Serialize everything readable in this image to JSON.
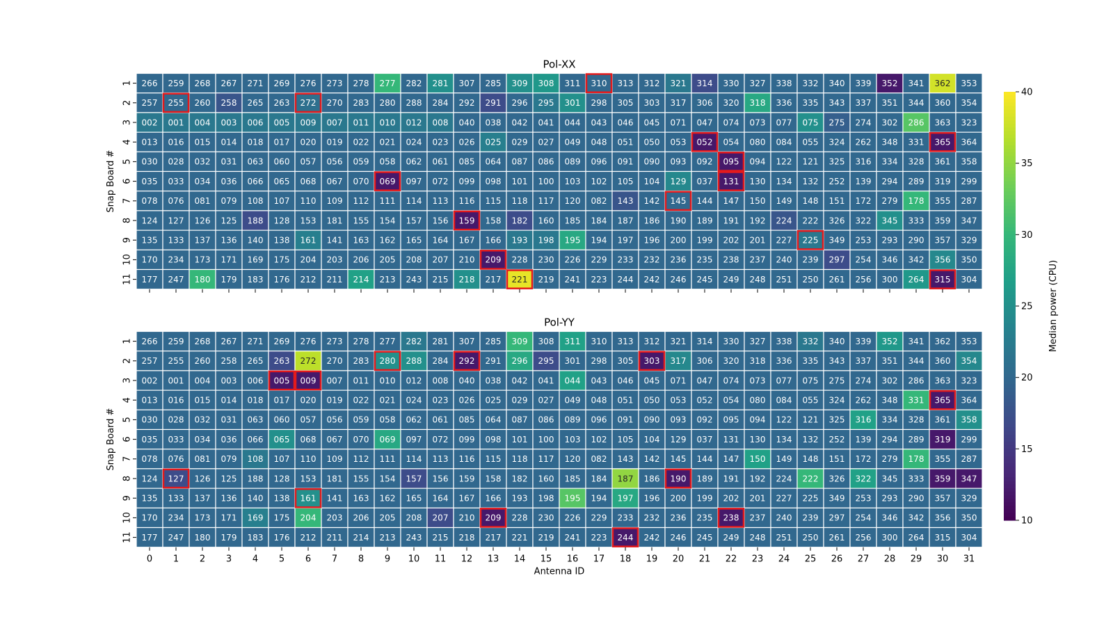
{
  "chart_data": {
    "type": "heatmap",
    "xlabel": "Antenna ID",
    "ylabel": "Snap Board #",
    "x_categories": [
      "0",
      "1",
      "2",
      "3",
      "4",
      "5",
      "6",
      "7",
      "8",
      "9",
      "10",
      "11",
      "12",
      "13",
      "14",
      "15",
      "16",
      "17",
      "18",
      "19",
      "20",
      "21",
      "22",
      "23",
      "24",
      "25",
      "26",
      "27",
      "28",
      "29",
      "30",
      "31"
    ],
    "y_categories": [
      "1",
      "2",
      "3",
      "4",
      "5",
      "6",
      "7",
      "8",
      "9",
      "10",
      "11"
    ],
    "colorbar": {
      "label": "Median power (CPU)",
      "vmin": 10,
      "vmax": 40,
      "ticks": [
        "10",
        "15",
        "20",
        "25",
        "30",
        "35",
        "40"
      ],
      "colormap": "viridis"
    },
    "antenna_labels": [
      [
        "266",
        "259",
        "268",
        "267",
        "271",
        "269",
        "276",
        "273",
        "278",
        "277",
        "282",
        "281",
        "307",
        "285",
        "309",
        "308",
        "311",
        "310",
        "313",
        "312",
        "321",
        "314",
        "330",
        "327",
        "338",
        "332",
        "340",
        "339",
        "352",
        "341",
        "362",
        "353"
      ],
      [
        "257",
        "255",
        "260",
        "258",
        "265",
        "263",
        "272",
        "270",
        "283",
        "280",
        "288",
        "284",
        "292",
        "291",
        "296",
        "295",
        "301",
        "298",
        "305",
        "303",
        "317",
        "306",
        "320",
        "318",
        "336",
        "335",
        "343",
        "337",
        "351",
        "344",
        "360",
        "354"
      ],
      [
        "002",
        "001",
        "004",
        "003",
        "006",
        "005",
        "009",
        "007",
        "011",
        "010",
        "012",
        "008",
        "040",
        "038",
        "042",
        "041",
        "044",
        "043",
        "046",
        "045",
        "071",
        "047",
        "074",
        "073",
        "077",
        "075",
        "275",
        "274",
        "302",
        "286",
        "363",
        "323"
      ],
      [
        "013",
        "016",
        "015",
        "014",
        "018",
        "017",
        "020",
        "019",
        "022",
        "021",
        "024",
        "023",
        "026",
        "025",
        "029",
        "027",
        "049",
        "048",
        "051",
        "050",
        "053",
        "052",
        "054",
        "080",
        "084",
        "055",
        "324",
        "262",
        "348",
        "331",
        "365",
        "364"
      ],
      [
        "030",
        "028",
        "032",
        "031",
        "063",
        "060",
        "057",
        "056",
        "059",
        "058",
        "062",
        "061",
        "085",
        "064",
        "087",
        "086",
        "089",
        "096",
        "091",
        "090",
        "093",
        "092",
        "095",
        "094",
        "122",
        "121",
        "325",
        "316",
        "334",
        "328",
        "361",
        "358"
      ],
      [
        "035",
        "033",
        "034",
        "036",
        "066",
        "065",
        "068",
        "067",
        "070",
        "069",
        "097",
        "072",
        "099",
        "098",
        "101",
        "100",
        "103",
        "102",
        "105",
        "104",
        "129",
        "037",
        "131",
        "130",
        "134",
        "132",
        "252",
        "139",
        "294",
        "289",
        "319",
        "299"
      ],
      [
        "078",
        "076",
        "081",
        "079",
        "108",
        "107",
        "110",
        "109",
        "112",
        "111",
        "114",
        "113",
        "116",
        "115",
        "118",
        "117",
        "120",
        "082",
        "143",
        "142",
        "145",
        "144",
        "147",
        "150",
        "149",
        "148",
        "151",
        "172",
        "279",
        "178",
        "355",
        "287"
      ],
      [
        "124",
        "127",
        "126",
        "125",
        "188",
        "128",
        "153",
        "181",
        "155",
        "154",
        "157",
        "156",
        "159",
        "158",
        "182",
        "160",
        "185",
        "184",
        "187",
        "186",
        "190",
        "189",
        "191",
        "192",
        "224",
        "222",
        "326",
        "322",
        "345",
        "333",
        "359",
        "347"
      ],
      [
        "135",
        "133",
        "137",
        "136",
        "140",
        "138",
        "161",
        "141",
        "163",
        "162",
        "165",
        "164",
        "167",
        "166",
        "193",
        "198",
        "195",
        "194",
        "197",
        "196",
        "200",
        "199",
        "202",
        "201",
        "227",
        "225",
        "349",
        "253",
        "293",
        "290",
        "357",
        "329"
      ],
      [
        "170",
        "234",
        "173",
        "171",
        "169",
        "175",
        "204",
        "203",
        "206",
        "205",
        "208",
        "207",
        "210",
        "209",
        "228",
        "230",
        "226",
        "229",
        "233",
        "232",
        "236",
        "235",
        "238",
        "237",
        "240",
        "239",
        "297",
        "254",
        "346",
        "342",
        "356",
        "350"
      ],
      [
        "177",
        "247",
        "180",
        "179",
        "183",
        "176",
        "212",
        "211",
        "214",
        "213",
        "243",
        "215",
        "218",
        "217",
        "221",
        "219",
        "241",
        "223",
        "244",
        "242",
        "246",
        "245",
        "249",
        "248",
        "251",
        "250",
        "261",
        "256",
        "300",
        "264",
        "315",
        "304"
      ]
    ],
    "panels": [
      {
        "title": "Pol-XX",
        "values": [
          [
            20,
            20,
            20,
            20,
            20,
            20,
            20,
            20,
            20,
            30,
            20,
            25,
            20,
            20,
            25,
            26,
            20,
            20,
            20,
            20,
            22,
            17,
            20,
            20,
            20,
            20,
            20,
            20,
            12,
            20,
            38,
            20
          ],
          [
            20,
            20,
            20,
            18,
            20,
            20,
            21,
            20,
            20,
            20,
            20,
            20,
            20,
            17,
            20,
            22,
            25,
            20,
            20,
            20,
            20,
            20,
            20,
            28,
            20,
            20,
            20,
            20,
            20,
            20,
            20,
            20
          ],
          [
            22,
            22,
            22,
            22,
            22,
            22,
            22,
            22,
            22,
            22,
            22,
            22,
            20,
            20,
            20,
            20,
            20,
            20,
            20,
            20,
            20,
            20,
            20,
            20,
            20,
            25,
            19,
            20,
            20,
            32,
            20,
            20
          ],
          [
            20,
            20,
            20,
            20,
            20,
            20,
            20,
            20,
            20,
            20,
            20,
            20,
            20,
            23,
            20,
            20,
            20,
            20,
            20,
            20,
            20,
            12,
            20,
            20,
            20,
            20,
            20,
            20,
            20,
            20,
            12,
            20
          ],
          [
            20,
            20,
            20,
            20,
            20,
            20,
            20,
            20,
            20,
            20,
            20,
            20,
            20,
            20,
            20,
            20,
            20,
            20,
            20,
            20,
            20,
            20,
            12,
            20,
            20,
            20,
            20,
            20,
            20,
            20,
            20,
            20
          ],
          [
            20,
            20,
            20,
            20,
            20,
            20,
            20,
            20,
            20,
            12,
            20,
            20,
            20,
            20,
            20,
            20,
            20,
            20,
            20,
            20,
            24,
            20,
            12,
            20,
            20,
            20,
            20,
            20,
            20,
            20,
            20,
            20
          ],
          [
            20,
            20,
            20,
            20,
            20,
            20,
            20,
            20,
            20,
            20,
            20,
            20,
            20,
            20,
            20,
            20,
            20,
            20,
            18,
            20,
            20,
            20,
            20,
            20,
            20,
            20,
            20,
            20,
            20,
            30,
            20,
            20
          ],
          [
            20,
            20,
            20,
            20,
            17,
            20,
            20,
            20,
            20,
            20,
            20,
            20,
            12,
            20,
            17,
            20,
            20,
            20,
            20,
            20,
            20,
            20,
            20,
            20,
            18,
            20,
            20,
            20,
            25,
            20,
            20,
            20
          ],
          [
            20,
            20,
            20,
            20,
            20,
            20,
            23,
            20,
            20,
            20,
            20,
            20,
            20,
            20,
            22,
            22,
            28,
            20,
            20,
            20,
            20,
            20,
            20,
            20,
            20,
            22,
            20,
            20,
            20,
            20,
            20,
            20
          ],
          [
            20,
            20,
            20,
            20,
            20,
            20,
            20,
            20,
            20,
            20,
            20,
            20,
            20,
            12,
            20,
            20,
            20,
            20,
            20,
            20,
            20,
            20,
            20,
            20,
            20,
            20,
            17,
            20,
            20,
            20,
            24,
            20
          ],
          [
            20,
            20,
            30,
            20,
            20,
            20,
            20,
            20,
            27,
            20,
            20,
            20,
            25,
            20,
            39,
            20,
            20,
            20,
            20,
            20,
            20,
            20,
            20,
            20,
            20,
            20,
            20,
            20,
            20,
            26,
            12,
            20
          ]
        ],
        "highlighted_cells": [
          [
            0,
            17
          ],
          [
            1,
            1
          ],
          [
            1,
            6
          ],
          [
            3,
            21
          ],
          [
            3,
            30
          ],
          [
            4,
            22
          ],
          [
            5,
            9
          ],
          [
            5,
            22
          ],
          [
            6,
            20
          ],
          [
            7,
            12
          ],
          [
            8,
            25
          ],
          [
            9,
            13
          ],
          [
            10,
            14
          ],
          [
            10,
            30
          ]
        ]
      },
      {
        "title": "Pol-YY",
        "values": [
          [
            20,
            20,
            20,
            20,
            20,
            20,
            20,
            20,
            20,
            20,
            22,
            20,
            20,
            20,
            30,
            20,
            27,
            20,
            20,
            20,
            20,
            20,
            20,
            20,
            20,
            22,
            20,
            20,
            26,
            20,
            20,
            20
          ],
          [
            20,
            20,
            20,
            20,
            20,
            17,
            37,
            20,
            20,
            25,
            25,
            20,
            12,
            20,
            28,
            17,
            20,
            20,
            20,
            12,
            24,
            20,
            20,
            20,
            20,
            20,
            20,
            20,
            20,
            20,
            20,
            24
          ],
          [
            20,
            20,
            20,
            20,
            20,
            12,
            12,
            20,
            20,
            20,
            20,
            20,
            20,
            20,
            20,
            20,
            27,
            20,
            20,
            20,
            20,
            20,
            20,
            20,
            20,
            20,
            20,
            20,
            20,
            20,
            20,
            20
          ],
          [
            20,
            20,
            20,
            20,
            20,
            20,
            20,
            20,
            20,
            20,
            20,
            20,
            20,
            20,
            20,
            20,
            20,
            20,
            20,
            20,
            20,
            20,
            20,
            20,
            20,
            20,
            20,
            20,
            20,
            30,
            12,
            20
          ],
          [
            20,
            20,
            20,
            20,
            20,
            20,
            20,
            20,
            20,
            20,
            20,
            20,
            20,
            20,
            20,
            20,
            20,
            20,
            20,
            20,
            20,
            20,
            20,
            20,
            20,
            20,
            20,
            27,
            20,
            20,
            20,
            25
          ],
          [
            20,
            20,
            20,
            20,
            20,
            25,
            20,
            20,
            20,
            28,
            20,
            20,
            20,
            20,
            20,
            20,
            20,
            20,
            20,
            20,
            20,
            20,
            20,
            20,
            20,
            20,
            20,
            20,
            20,
            20,
            12,
            20
          ],
          [
            20,
            20,
            20,
            20,
            22,
            20,
            20,
            20,
            20,
            20,
            20,
            20,
            20,
            20,
            20,
            20,
            20,
            20,
            20,
            20,
            20,
            20,
            20,
            27,
            20,
            20,
            20,
            20,
            20,
            30,
            20,
            20
          ],
          [
            20,
            17,
            20,
            20,
            20,
            20,
            20,
            20,
            20,
            20,
            17,
            20,
            20,
            20,
            20,
            20,
            20,
            20,
            35,
            20,
            12,
            20,
            20,
            20,
            20,
            30,
            20,
            27,
            20,
            20,
            12,
            12
          ],
          [
            20,
            20,
            20,
            20,
            20,
            20,
            25,
            20,
            20,
            20,
            20,
            20,
            20,
            20,
            20,
            20,
            32,
            20,
            28,
            20,
            20,
            20,
            20,
            20,
            20,
            20,
            20,
            20,
            20,
            20,
            20,
            20
          ],
          [
            20,
            20,
            20,
            20,
            23,
            20,
            30,
            20,
            20,
            20,
            20,
            17,
            20,
            12,
            20,
            20,
            20,
            20,
            20,
            20,
            20,
            20,
            12,
            20,
            20,
            20,
            20,
            20,
            20,
            20,
            20,
            20
          ],
          [
            20,
            20,
            20,
            20,
            20,
            20,
            20,
            20,
            20,
            20,
            20,
            20,
            20,
            20,
            20,
            20,
            20,
            20,
            12,
            20,
            20,
            20,
            20,
            20,
            20,
            20,
            20,
            20,
            20,
            20,
            20,
            20
          ]
        ],
        "highlighted_cells": [
          [
            1,
            9
          ],
          [
            1,
            12
          ],
          [
            1,
            19
          ],
          [
            2,
            5
          ],
          [
            2,
            6
          ],
          [
            3,
            30
          ],
          [
            7,
            1
          ],
          [
            7,
            20
          ],
          [
            8,
            6
          ],
          [
            9,
            13
          ],
          [
            9,
            22
          ],
          [
            10,
            18
          ]
        ]
      }
    ]
  }
}
